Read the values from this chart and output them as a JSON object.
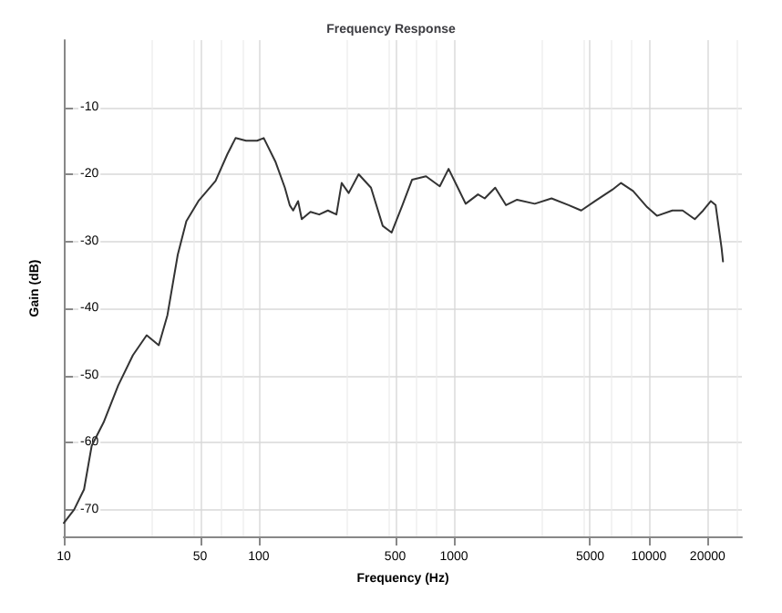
{
  "chart_data": {
    "type": "line",
    "title": "Frequency Response",
    "xlabel": "Frequency (Hz)",
    "ylabel": "Gain (dB)",
    "log": "x",
    "xlim": [
      10,
      30000
    ],
    "xticks": [
      10,
      50,
      100,
      500,
      1000,
      5000,
      10000,
      20000
    ],
    "ylim": [
      -74,
      0
    ],
    "yticks": [
      -10,
      -20,
      -30,
      -40,
      -50,
      -60,
      -70
    ],
    "grid": true,
    "marker": "none",
    "line_style": "solid",
    "series": [
      {
        "color": "#333333",
        "x": [
          10,
          11.3,
          12.7,
          13.9,
          16,
          19,
          22.6,
          26.6,
          30.7,
          34,
          38.4,
          42.5,
          49,
          60,
          69,
          76,
          86,
          98,
          106,
          122,
          136,
          144,
          150,
          159,
          166,
          184,
          204,
          226,
          250,
          266,
          289,
          325,
          376,
          432,
          480,
          545,
          611,
          720,
          847,
          940,
          1040,
          1150,
          1330,
          1440,
          1630,
          1850,
          2110,
          2600,
          3170,
          3880,
          4500,
          5300,
          6500,
          7200,
          8300,
          9800,
          11000,
          13200,
          14900,
          17200,
          19000,
          20800,
          22000,
          23600,
          24000
        ],
        "values": [
          -72,
          -70,
          -67,
          -60.5,
          -57,
          -51.5,
          -47,
          -44,
          -45.5,
          -41,
          -32,
          -27,
          -24,
          -21,
          -17,
          -14.6,
          -15,
          -15,
          -14.6,
          -18.2,
          -22,
          -24.6,
          -25.4,
          -24,
          -26.7,
          -25.6,
          -26,
          -25.4,
          -26,
          -21.3,
          -22.8,
          -20,
          -22,
          -27.7,
          -28.7,
          -24.6,
          -20.8,
          -20.3,
          -21.8,
          -19.2,
          -21.8,
          -24.4,
          -23,
          -23.6,
          -22,
          -24.6,
          -23.8,
          -24.4,
          -23.6,
          -24.6,
          -25.4,
          -24,
          -22.3,
          -21.3,
          -22.5,
          -24.9,
          -26.2,
          -25.4,
          -25.4,
          -26.7,
          -25.4,
          -24,
          -24.6,
          -31,
          -33
        ]
      }
    ]
  }
}
